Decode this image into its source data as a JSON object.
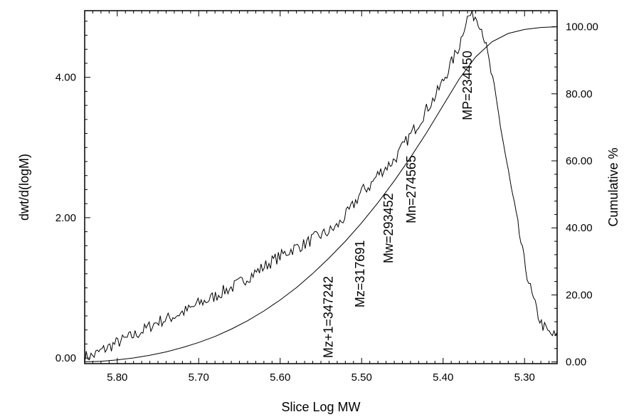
{
  "chart_data": {
    "type": "line",
    "title": "",
    "xlabel": "Slice Log MW",
    "ylabel_left": "dwt/d(logM)",
    "ylabel_right": "Cumulative %",
    "x_reversed": true,
    "xlim": [
      5.84,
      5.26
    ],
    "ylim_left": [
      -0.08,
      4.95
    ],
    "ylim_right": [
      -0.5,
      104.8
    ],
    "x_ticks": [
      "5.80",
      "5.70",
      "5.60",
      "5.50",
      "5.40",
      "5.30"
    ],
    "y_left_ticks": [
      "0.00",
      "2.00",
      "4.00"
    ],
    "y_right_ticks": [
      "0.00",
      "20.00",
      "40.00",
      "60.00",
      "80.00",
      "100.00"
    ],
    "grid": false,
    "series": [
      {
        "name": "",
        "axis": "left",
        "x": [
          5.84,
          5.83,
          5.82,
          5.81,
          5.8,
          5.79,
          5.78,
          5.77,
          5.76,
          5.75,
          5.74,
          5.73,
          5.72,
          5.71,
          5.7,
          5.69,
          5.68,
          5.67,
          5.66,
          5.65,
          5.64,
          5.63,
          5.62,
          5.61,
          5.6,
          5.59,
          5.58,
          5.57,
          5.56,
          5.55,
          5.54,
          5.53,
          5.52,
          5.51,
          5.5,
          5.49,
          5.48,
          5.47,
          5.46,
          5.45,
          5.44,
          5.43,
          5.42,
          5.41,
          5.4,
          5.39,
          5.38,
          5.375,
          5.37,
          5.365,
          5.36,
          5.355,
          5.35,
          5.34,
          5.33,
          5.32,
          5.31,
          5.3,
          5.29,
          5.28,
          5.27,
          5.26
        ],
        "values": [
          0.02,
          0.03,
          0.1,
          0.16,
          0.22,
          0.27,
          0.32,
          0.38,
          0.45,
          0.52,
          0.55,
          0.6,
          0.65,
          0.7,
          0.78,
          0.82,
          0.88,
          0.95,
          1.0,
          1.07,
          1.15,
          1.22,
          1.3,
          1.38,
          1.45,
          1.52,
          1.58,
          1.62,
          1.7,
          1.75,
          1.8,
          1.88,
          2.02,
          2.18,
          2.38,
          2.45,
          2.62,
          2.72,
          2.82,
          3.0,
          3.18,
          3.35,
          3.55,
          3.72,
          3.95,
          4.2,
          4.45,
          4.7,
          4.85,
          4.9,
          4.87,
          4.78,
          4.6,
          4.0,
          3.35,
          2.65,
          2.0,
          1.35,
          0.85,
          0.5,
          0.35,
          0.3
        ]
      },
      {
        "name": "",
        "axis": "right",
        "x": [
          5.84,
          5.82,
          5.8,
          5.78,
          5.76,
          5.74,
          5.72,
          5.7,
          5.68,
          5.66,
          5.64,
          5.62,
          5.6,
          5.58,
          5.56,
          5.54,
          5.52,
          5.5,
          5.48,
          5.46,
          5.44,
          5.42,
          5.4,
          5.38,
          5.36,
          5.34,
          5.32,
          5.3,
          5.28,
          5.26
        ],
        "values": [
          0.0,
          0.2,
          0.6,
          1.2,
          2.0,
          3.0,
          4.3,
          5.8,
          7.6,
          9.8,
          12.3,
          15.2,
          18.5,
          22.2,
          26.4,
          31.0,
          36.0,
          41.5,
          47.5,
          54.0,
          61.0,
          68.5,
          76.5,
          84.5,
          91.0,
          95.5,
          98.0,
          99.2,
          99.8,
          100.0
        ]
      }
    ],
    "annotations": [
      {
        "text": "Mz+1=347242",
        "x": 5.541,
        "y": 0.0
      },
      {
        "text": "Mz=317691",
        "x": 5.502,
        "y": 0.72
      },
      {
        "text": "Mw=293452",
        "x": 5.467,
        "y": 1.35
      },
      {
        "text": "Mn=274565",
        "x": 5.439,
        "y": 1.92
      },
      {
        "text": "MP=234450",
        "x": 5.37,
        "y": 3.39
      }
    ]
  }
}
